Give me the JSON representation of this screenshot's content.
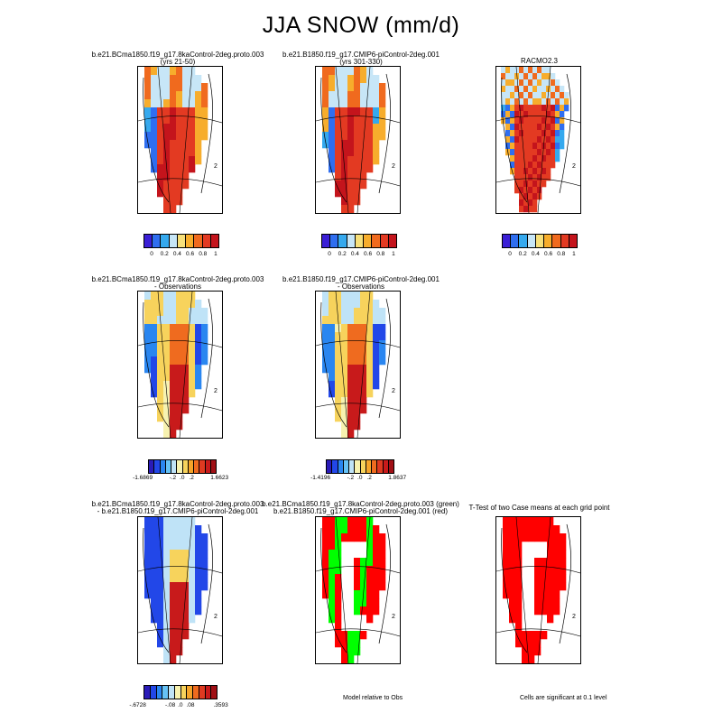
{
  "title": "JJA SNOW (mm/d)",
  "colors": {
    "snow": [
      "#3a1fd6",
      "#2f6ef0",
      "#35a9ee",
      "#c7e6f7",
      "#f7e07a",
      "#f7ad2c",
      "#f06a1e",
      "#e33a22",
      "#c4141c"
    ],
    "diff": [
      "#2a1bb8",
      "#2247e8",
      "#2a86f0",
      "#66c2f5",
      "#bfe3f7",
      "#f7f2b0",
      "#f7d35c",
      "#f5a42a",
      "#ef6b1f",
      "#df3a21",
      "#c81a1b",
      "#a10f15"
    ],
    "sig_red": "#ff0000",
    "sig_green": "#00ff00"
  },
  "panels": {
    "p1": {
      "title": "b.e21.BCma1850.f19_g17.8kaControl-2deg.proto.003",
      "subtitle": "(yrs 21-50)"
    },
    "p2": {
      "title": "b.e21.B1850.f19_g17.CMIP6-piControl-2deg.001",
      "subtitle": "(yrs 301-330)"
    },
    "p3": {
      "title": "RACMO2.3"
    },
    "p4": {
      "title": "b.e21.BCma1850.f19_g17.8kaControl-2deg.proto.003",
      "subtitle": "- Observations"
    },
    "p5": {
      "title": "b.e21.B1850.f19_g17.CMIP6-piControl-2deg.001",
      "subtitle": "- Observations"
    },
    "p7": {
      "title": "b.e21.BCma1850.f19_g17.8kaControl-2deg.proto.003",
      "subtitle": "- b.e21.B1850.f19_g17.CMIP6-piControl-2deg.001"
    },
    "p8": {
      "title": "b.e21.BCma1850.f19_g17.8kaControl-2deg.proto.003 (green)",
      "subtitle": "b.e21.B1850.f19_g17.CMIP6-piControl-2deg.001 (red)"
    },
    "p9": {
      "title": "T-Test of two Case means at each grid point"
    }
  },
  "colorbars": {
    "snow_ticks": [
      "0",
      "0.2",
      "0.4",
      "0.6",
      "0.8",
      "1"
    ],
    "p4": {
      "min": "-1.6869",
      "ticks": [
        "-.2",
        ".0",
        ".2"
      ],
      "max": "1.6623"
    },
    "p5": {
      "min": "-1.4196",
      "ticks": [
        "-.2",
        ".0",
        ".2"
      ],
      "max": "1.8637"
    },
    "p7": {
      "min": "-.6728",
      "ticks": [
        "-.08",
        ".0",
        ".08"
      ],
      "max": ".3593"
    }
  },
  "notes": {
    "model_relative": "Model relative to Obs",
    "significance": "Cells are significant at 0.1 level"
  },
  "map_labels": {
    "mark": "2"
  }
}
